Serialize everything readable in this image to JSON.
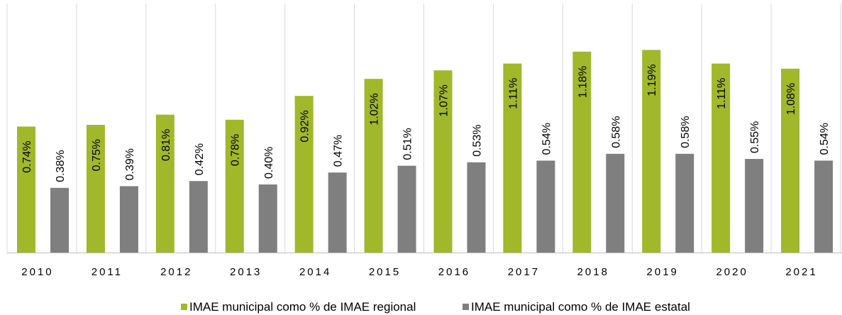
{
  "chart_data": {
    "type": "bar",
    "categories": [
      "2010",
      "2011",
      "2012",
      "2013",
      "2014",
      "2015",
      "2016",
      "2017",
      "2018",
      "2019",
      "2020",
      "2021"
    ],
    "series": [
      {
        "name": "IMAE municipal como % de IMAE regional",
        "color": "#a0b82a",
        "values": [
          0.74,
          0.75,
          0.81,
          0.78,
          0.92,
          1.02,
          1.07,
          1.11,
          1.18,
          1.19,
          1.11,
          1.08
        ],
        "value_labels": [
          "0.74%",
          "0.75%",
          "0.81%",
          "0.78%",
          "0.92%",
          "1.02%",
          "1.07%",
          "1.11%",
          "1.18%",
          "1.19%",
          "1.11%",
          "1.08%"
        ]
      },
      {
        "name": "IMAE municipal como % de IMAE estatal",
        "color": "#7f7f7f",
        "values": [
          0.38,
          0.39,
          0.42,
          0.4,
          0.47,
          0.51,
          0.53,
          0.54,
          0.58,
          0.58,
          0.55,
          0.54
        ],
        "value_labels": [
          "0.38%",
          "0.39%",
          "0.42%",
          "0.40%",
          "0.47%",
          "0.51%",
          "0.53%",
          "0.54%",
          "0.58%",
          "0.58%",
          "0.55%",
          "0.54%"
        ]
      }
    ],
    "ylim": [
      0,
      1.4
    ],
    "legend": "bottom"
  }
}
